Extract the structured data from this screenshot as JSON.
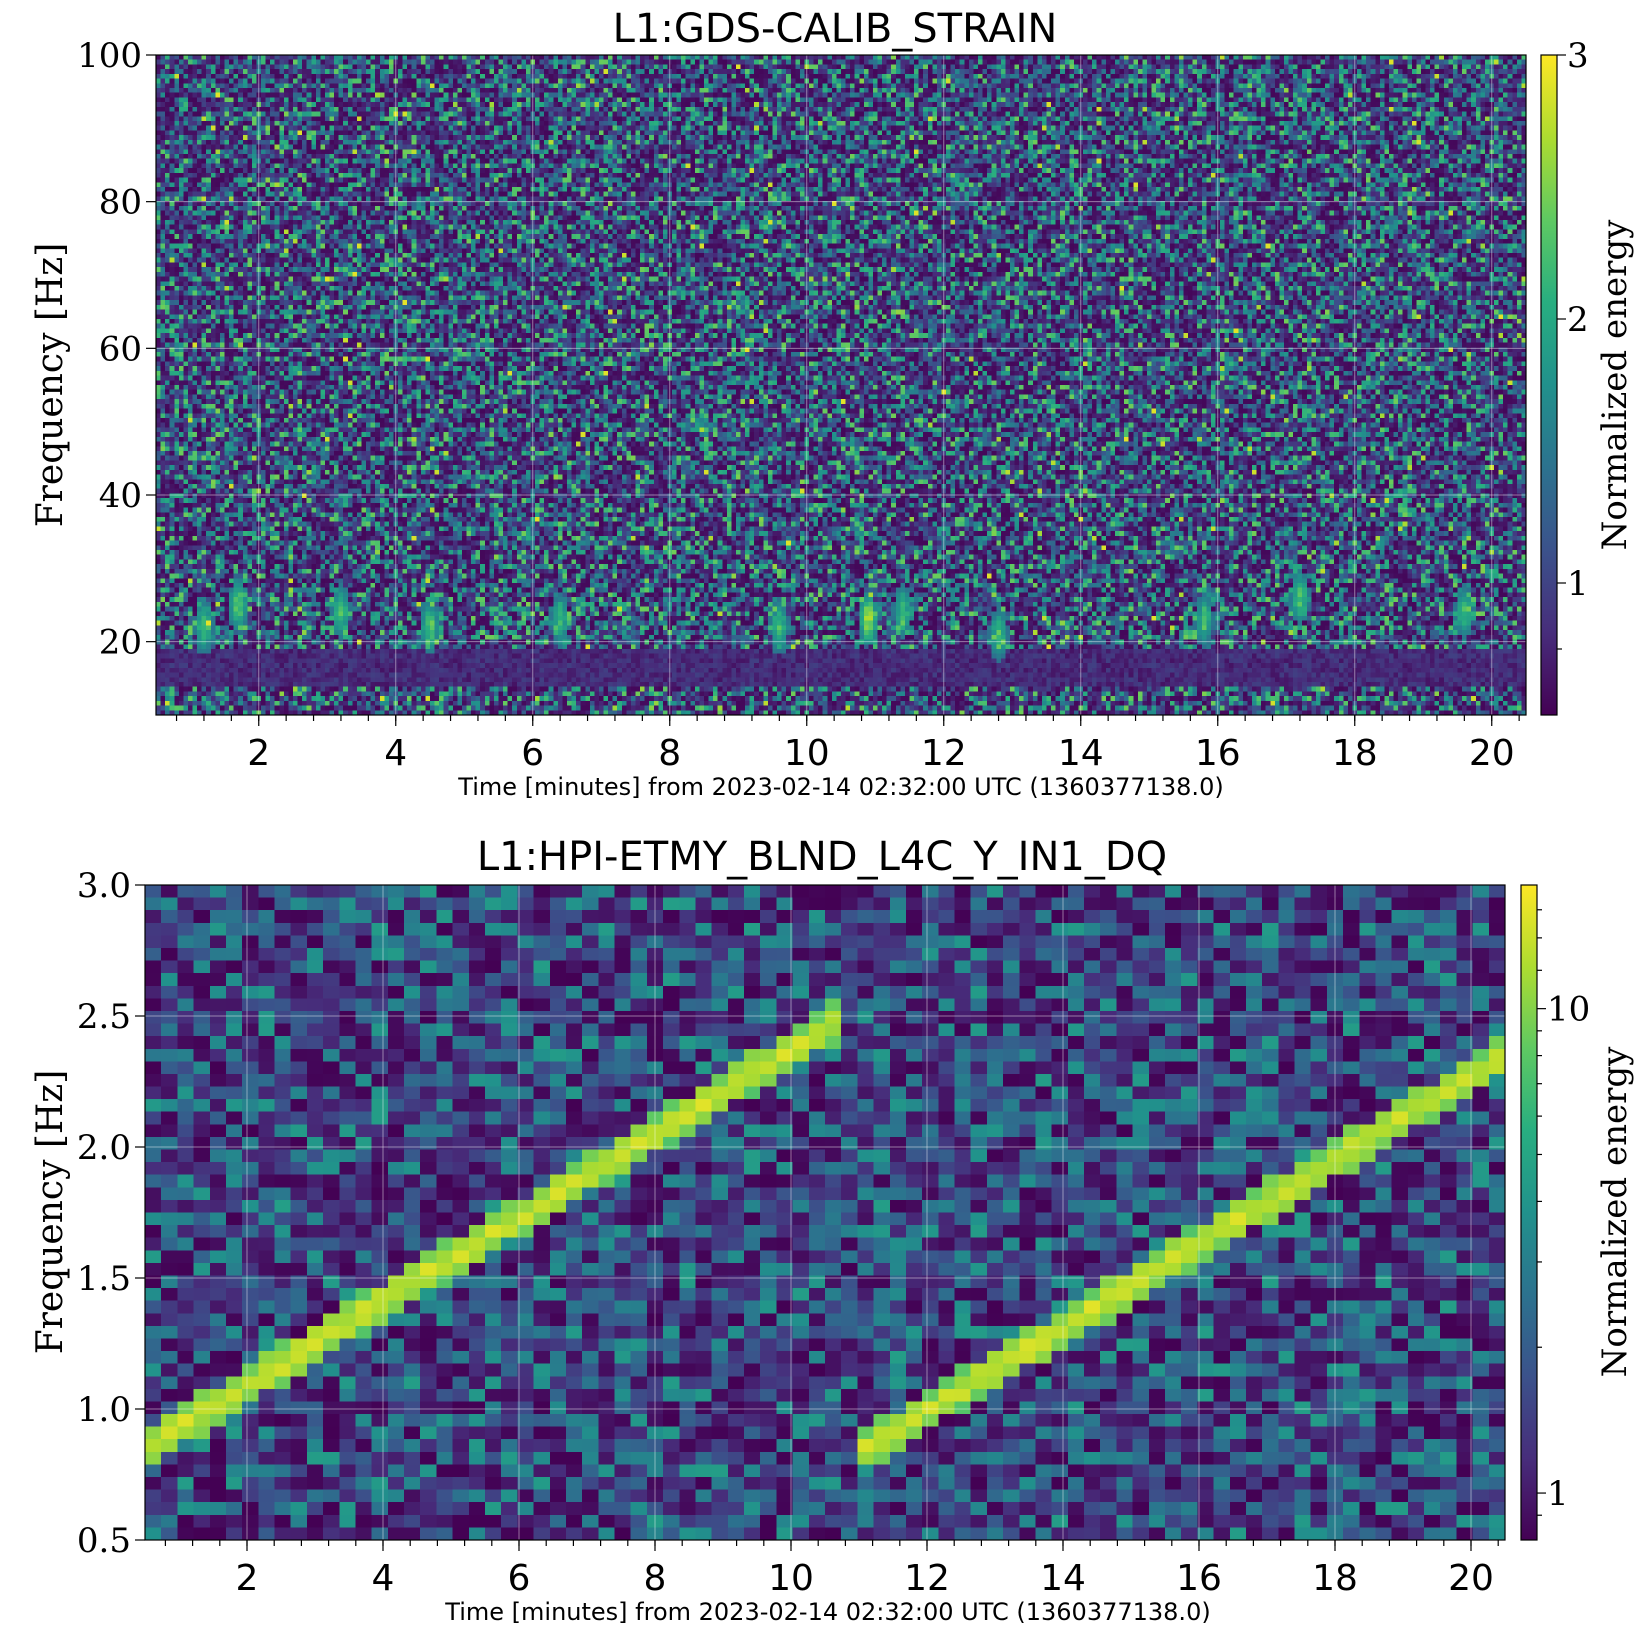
{
  "chart_data": [
    {
      "type": "heatmap",
      "title": "L1:GDS-CALIB_STRAIN",
      "xlabel": "Time [minutes] from 2023-02-14 02:32:00 UTC (1360377138.0)",
      "ylabel": "Frequency [Hz]",
      "colorbar_label": "Normalized energy",
      "colormap": "viridis",
      "xlim": [
        0.5,
        20.5
      ],
      "ylim": [
        10,
        100
      ],
      "xticks": [
        2,
        4,
        6,
        8,
        10,
        12,
        14,
        16,
        18,
        20
      ],
      "yticks": [
        20,
        40,
        60,
        80,
        100
      ],
      "clim": [
        0.5,
        3
      ],
      "cticks": [
        1,
        2,
        3
      ],
      "grid": true,
      "features": [
        {
          "type": "band",
          "f_min": 14,
          "f_max": 19,
          "energy": 0.8
        },
        {
          "type": "glitch",
          "t": 1.2,
          "f": 22,
          "energy": 2.4
        },
        {
          "type": "glitch",
          "t": 1.7,
          "f": 25,
          "energy": 2.6
        },
        {
          "type": "glitch",
          "t": 3.2,
          "f": 24,
          "energy": 2.4
        },
        {
          "type": "glitch",
          "t": 4.5,
          "f": 22,
          "energy": 2.5
        },
        {
          "type": "glitch",
          "t": 6.4,
          "f": 23,
          "energy": 2.3
        },
        {
          "type": "glitch",
          "t": 9.6,
          "f": 22,
          "energy": 2.4
        },
        {
          "type": "glitch",
          "t": 10.9,
          "f": 23,
          "energy": 3.0
        },
        {
          "type": "glitch",
          "t": 11.4,
          "f": 24,
          "energy": 2.4
        },
        {
          "type": "glitch",
          "t": 12.8,
          "f": 21,
          "energy": 2.3
        },
        {
          "type": "glitch",
          "t": 15.8,
          "f": 23,
          "energy": 2.3
        },
        {
          "type": "glitch",
          "t": 17.2,
          "f": 26,
          "energy": 2.5
        },
        {
          "type": "glitch",
          "t": 19.6,
          "f": 24,
          "energy": 2.4
        }
      ]
    },
    {
      "type": "heatmap",
      "title": "L1:HPI-ETMY_BLND_L4C_Y_IN1_DQ",
      "xlabel": "Time [minutes] from 2023-02-14 02:32:00 UTC (1360377138.0)",
      "ylabel": "Frequency [Hz]",
      "colorbar_label": "Normalized energy",
      "colormap": "viridis",
      "color_scale": "log",
      "xlim": [
        0.5,
        20.5
      ],
      "ylim": [
        0.5,
        3.0
      ],
      "xticks": [
        2,
        4,
        6,
        8,
        10,
        12,
        14,
        16,
        18,
        20
      ],
      "yticks": [
        "0.5",
        "1.0",
        "1.5",
        "2.0",
        "2.5",
        "3.0"
      ],
      "clim": [
        0.8,
        18
      ],
      "cticks": [
        1,
        10
      ],
      "grid": true,
      "features": [
        {
          "type": "chirp",
          "t_start": 0.5,
          "f_start": 0.85,
          "t_end": 10.8,
          "f_end": 2.5,
          "energy": 14
        },
        {
          "type": "chirp",
          "t_start": 11.0,
          "f_start": 0.83,
          "t_end": 20.5,
          "f_end": 2.35,
          "energy": 14
        }
      ]
    }
  ]
}
